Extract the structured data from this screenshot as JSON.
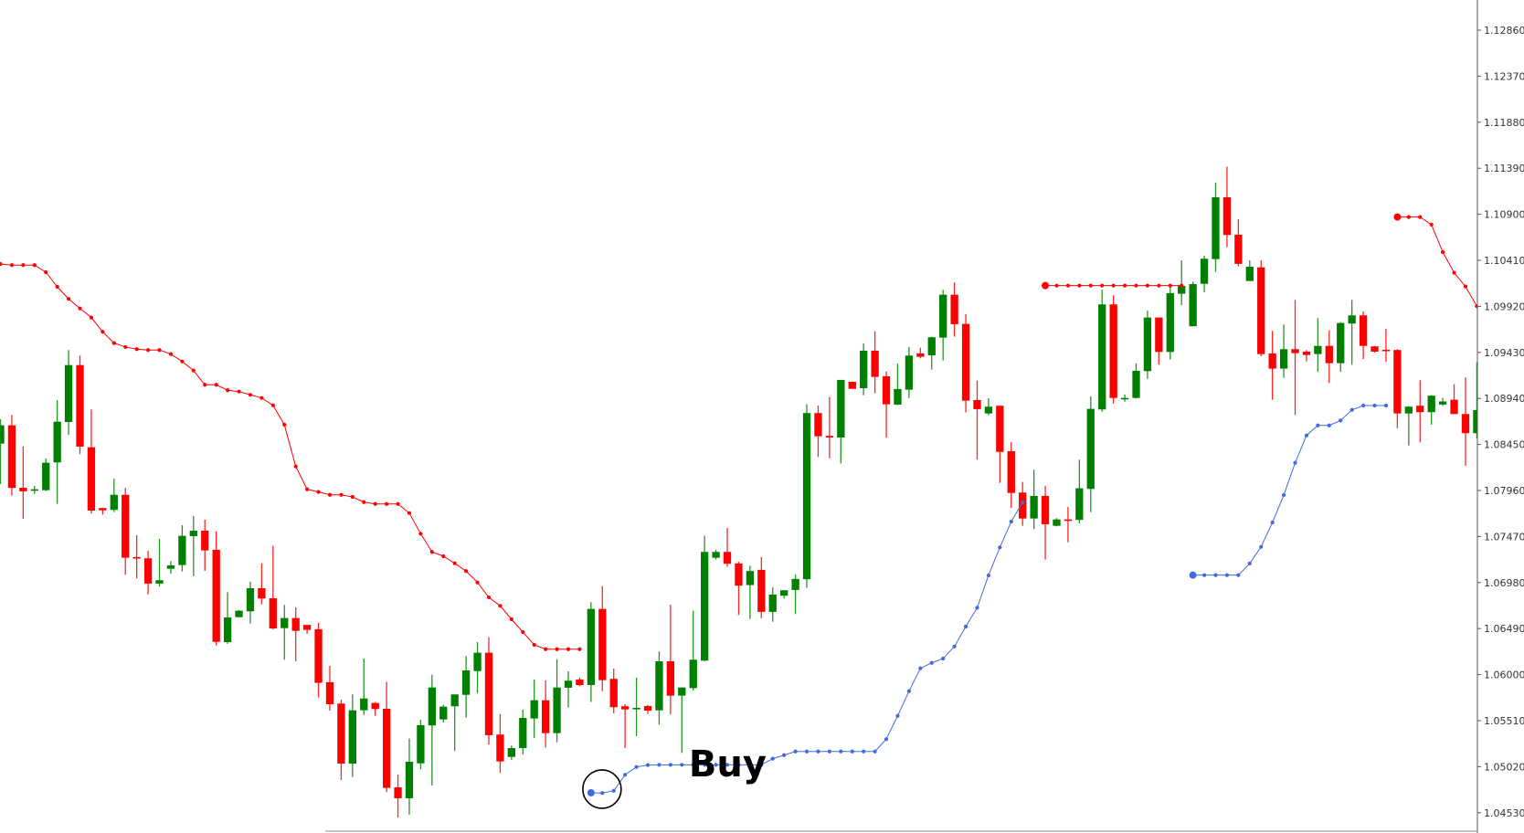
{
  "chart_data": {
    "type": "candlestick",
    "title": "",
    "xlabel": "",
    "ylabel": "",
    "ylim": [
      1.04314,
      1.13181
    ],
    "grid": false,
    "candle_format": [
      "open",
      "high",
      "low",
      "close"
    ],
    "colors": {
      "bull": "#008000",
      "bear": "#ff0000",
      "sell_stop": "#ff0000",
      "buy_stop": "#4169e1",
      "axis": "#555555"
    },
    "y_ticks": [
      "1.12860",
      "1.12370",
      "1.11880",
      "1.11390",
      "1.10900",
      "1.10410",
      "1.09920",
      "1.09430",
      "1.08940",
      "1.08450",
      "1.07960",
      "1.07470",
      "1.06980",
      "1.06490",
      "1.06000",
      "1.05510",
      "1.05020",
      "1.04530"
    ],
    "candles": [
      [
        1.08459,
        1.08719,
        1.08028,
        1.08654
      ],
      [
        1.08654,
        1.08764,
        1.07905,
        1.07987
      ],
      [
        1.07989,
        1.08427,
        1.07659,
        1.07951
      ],
      [
        1.0796,
        1.08009,
        1.07924,
        1.07973
      ],
      [
        1.07963,
        1.08301,
        1.07953,
        1.08255
      ],
      [
        1.08259,
        1.0892,
        1.07817,
        1.08692
      ],
      [
        1.08689,
        1.09455,
        1.08553,
        1.09295
      ],
      [
        1.09295,
        1.09396,
        1.08346,
        1.08427
      ],
      [
        1.0842,
        1.08823,
        1.07714,
        1.07746
      ],
      [
        1.07773,
        1.07773,
        1.07704,
        1.07749
      ],
      [
        1.07753,
        1.08087,
        1.0773,
        1.07914
      ],
      [
        1.07914,
        1.07987,
        1.07063,
        1.07244
      ],
      [
        1.07251,
        1.07484,
        1.07024,
        1.07238
      ],
      [
        1.07238,
        1.07319,
        1.06855,
        1.06969
      ],
      [
        1.06969,
        1.07445,
        1.06937,
        1.07005
      ],
      [
        1.07127,
        1.07209,
        1.07073,
        1.07163
      ],
      [
        1.07166,
        1.07591,
        1.07098,
        1.07477
      ],
      [
        1.07474,
        1.07688,
        1.0705,
        1.07532
      ],
      [
        1.07532,
        1.07649,
        1.07105,
        1.07322
      ],
      [
        1.07329,
        1.07526,
        1.0631,
        1.06349
      ],
      [
        1.06346,
        1.06878,
        1.06327,
        1.06609
      ],
      [
        1.06612,
        1.06687,
        1.06609,
        1.0668
      ],
      [
        1.06674,
        1.06991,
        1.06544,
        1.0692
      ],
      [
        1.0692,
        1.07185,
        1.06748,
        1.0681
      ],
      [
        1.06813,
        1.0737,
        1.0648,
        1.06492
      ],
      [
        1.06495,
        1.06742,
        1.06159,
        1.06602
      ],
      [
        1.06602,
        1.06716,
        1.06142,
        1.06466
      ],
      [
        1.06529,
        1.06529,
        1.06434,
        1.06476
      ],
      [
        1.06483,
        1.06551,
        1.05756,
        1.05912
      ],
      [
        1.05919,
        1.06094,
        1.05617,
        1.05685
      ],
      [
        1.05692,
        1.05734,
        1.04878,
        1.05053
      ],
      [
        1.05053,
        1.05789,
        1.0491,
        1.0562
      ],
      [
        1.0562,
        1.06171,
        1.05571,
        1.05746
      ],
      [
        1.05698,
        1.05708,
        1.05562,
        1.05634
      ],
      [
        1.05636,
        1.05922,
        1.04749,
        1.04794
      ],
      [
        1.048,
        1.04937,
        1.04479,
        1.04684
      ],
      [
        1.04684,
        1.05319,
        1.04511,
        1.05073
      ],
      [
        1.05056,
        1.0552,
        1.04992,
        1.05462
      ],
      [
        1.05459,
        1.05999,
        1.0482,
        1.05863
      ],
      [
        1.05523,
        1.05679,
        1.05491,
        1.05659
      ],
      [
        1.05663,
        1.05789,
        1.05187,
        1.05789
      ],
      [
        1.05785,
        1.06197,
        1.05543,
        1.06045
      ],
      [
        1.06038,
        1.06346,
        1.05801,
        1.06233
      ],
      [
        1.06233,
        1.06397,
        1.05255,
        1.05355
      ],
      [
        1.05362,
        1.05581,
        1.04953,
        1.05076
      ],
      [
        1.05124,
        1.05244,
        1.0509,
        1.05218
      ],
      [
        1.05218,
        1.05627,
        1.0515,
        1.05539
      ],
      [
        1.05533,
        1.05948,
        1.05326,
        1.05727
      ],
      [
        1.05727,
        1.05938,
        1.05225,
        1.05377
      ],
      [
        1.05377,
        1.06164,
        1.0528,
        1.05863
      ],
      [
        1.0586,
        1.06035,
        1.05649,
        1.05935
      ],
      [
        1.05948,
        1.05967,
        1.05877,
        1.05889
      ],
      [
        1.05889,
        1.06771,
        1.05708,
        1.06699
      ],
      [
        1.06699,
        1.06943,
        1.05824,
        1.05941
      ],
      [
        1.05955,
        1.06064,
        1.05588,
        1.05653
      ],
      [
        1.05663,
        1.05685,
        1.05218,
        1.0563
      ],
      [
        1.05634,
        1.05967,
        1.05345,
        1.05646
      ],
      [
        1.05666,
        1.05675,
        1.05581,
        1.05617
      ],
      [
        1.0562,
        1.06246,
        1.05468,
        1.06142
      ],
      [
        1.06142,
        1.06745,
        1.05575,
        1.05776
      ],
      [
        1.05776,
        1.05863,
        1.05167,
        1.05863
      ],
      [
        1.05857,
        1.0668,
        1.05831,
        1.06159
      ],
      [
        1.06149,
        1.07477,
        1.06142,
        1.07306
      ],
      [
        1.07244,
        1.07329,
        1.07225,
        1.07306
      ],
      [
        1.07306,
        1.07562,
        1.07147,
        1.0718
      ],
      [
        1.07183,
        1.07202,
        1.06635,
        1.06947
      ],
      [
        1.06953,
        1.0716,
        1.06592,
        1.07102
      ],
      [
        1.07115,
        1.07251,
        1.06599,
        1.06668
      ],
      [
        1.06668,
        1.0693,
        1.06563,
        1.06852
      ],
      [
        1.0684,
        1.06898,
        1.0681,
        1.06898
      ],
      [
        1.06901,
        1.07066,
        1.06645,
        1.07018
      ],
      [
        1.07015,
        1.08877,
        1.06923,
        1.08784
      ],
      [
        1.08784,
        1.08864,
        1.08317,
        1.08537
      ],
      [
        1.08541,
        1.08955,
        1.08304,
        1.08524
      ],
      [
        1.08524,
        1.09137,
        1.08249,
        1.09137
      ],
      [
        1.09117,
        1.09117,
        1.09042,
        1.09042
      ],
      [
        1.09049,
        1.09526,
        1.08974,
        1.09448
      ],
      [
        1.09448,
        1.09655,
        1.08994,
        1.09169
      ],
      [
        1.09176,
        1.09227,
        1.08521,
        1.08877
      ],
      [
        1.08874,
        1.09312,
        1.08868,
        1.0904
      ],
      [
        1.09033,
        1.09487,
        1.08945,
        1.09396
      ],
      [
        1.09419,
        1.0948,
        1.09367,
        1.09383
      ],
      [
        1.09399,
        1.09597,
        1.09247,
        1.09591
      ],
      [
        1.09587,
        1.10096,
        1.09344,
        1.10044
      ],
      [
        1.10044,
        1.10174,
        1.09597,
        1.0973
      ],
      [
        1.09733,
        1.09837,
        1.0879,
        1.08916
      ],
      [
        1.08923,
        1.0913,
        1.08288,
        1.08826
      ],
      [
        1.0878,
        1.08942,
        1.08761,
        1.08852
      ],
      [
        1.08862,
        1.08862,
        1.08041,
        1.08371
      ],
      [
        1.08378,
        1.08476,
        1.07773,
        1.07934
      ],
      [
        1.07938,
        1.08051,
        1.07584,
        1.07662
      ],
      [
        1.07662,
        1.08181,
        1.07549,
        1.07902
      ],
      [
        1.07902,
        1.08009,
        1.07225,
        1.07601
      ],
      [
        1.07584,
        1.07666,
        1.07578,
        1.07652
      ],
      [
        1.07652,
        1.07786,
        1.07409,
        1.07647
      ],
      [
        1.07647,
        1.08288,
        1.0761,
        1.07983
      ],
      [
        1.07977,
        1.08962,
        1.0773,
        1.08829
      ],
      [
        1.08823,
        1.10096,
        1.08797,
        1.09941
      ],
      [
        1.09941,
        1.10038,
        1.08884,
        1.08945
      ],
      [
        1.08936,
        1.08981,
        1.08906,
        1.08945
      ],
      [
        1.08945,
        1.09315,
        1.08939,
        1.09234
      ],
      [
        1.09231,
        1.09876,
        1.09149,
        1.09801
      ],
      [
        1.09801,
        1.09801,
        1.09299,
        1.09435
      ],
      [
        1.09435,
        1.10145,
        1.09354,
        1.1006
      ],
      [
        1.10054,
        1.1041,
        1.09934,
        1.10138
      ],
      [
        1.09708,
        1.10183,
        1.09708,
        1.10157
      ],
      [
        1.1016,
        1.1046,
        1.1007,
        1.10427
      ],
      [
        1.10423,
        1.11237,
        1.10287,
        1.11081
      ],
      [
        1.11081,
        1.11405,
        1.1055,
        1.1068
      ],
      [
        1.10683,
        1.10848,
        1.10345,
        1.10372
      ],
      [
        1.1019,
        1.1041,
        1.1019,
        1.10342
      ],
      [
        1.10335,
        1.1041,
        1.09389,
        1.09412
      ],
      [
        1.09419,
        1.09659,
        1.08926,
        1.09257
      ],
      [
        1.09257,
        1.09727,
        1.09159,
        1.09464
      ],
      [
        1.09464,
        1.09989,
        1.08764,
        1.09422
      ],
      [
        1.09438,
        1.09455,
        1.09334,
        1.09402
      ],
      [
        1.09412,
        1.09795,
        1.09224,
        1.09499
      ],
      [
        1.09499,
        1.09665,
        1.09104,
        1.09315
      ],
      [
        1.09315,
        1.09752,
        1.09224,
        1.09743
      ],
      [
        1.09737,
        1.09989,
        1.09299,
        1.09824
      ],
      [
        1.09824,
        1.09866,
        1.09358,
        1.09499
      ],
      [
        1.09494,
        1.09499,
        1.09428,
        1.09438
      ],
      [
        1.09458,
        1.09681,
        1.09328,
        1.09451
      ],
      [
        1.09455,
        1.09464,
        1.08622,
        1.0878
      ],
      [
        1.0878,
        1.08858,
        1.08439,
        1.08852
      ],
      [
        1.08862,
        1.09134,
        1.08472,
        1.08794
      ],
      [
        1.08794,
        1.08975,
        1.0866,
        1.08969
      ],
      [
        1.08875,
        1.08947,
        1.08862,
        1.08908
      ],
      [
        1.08926,
        1.09091,
        1.08774,
        1.08774
      ],
      [
        1.08774,
        1.09163,
        1.08223,
        1.0857
      ],
      [
        1.0857,
        1.09325,
        1.08514,
        1.08816
      ]
    ],
    "sell_stop": [
      1.10371,
      1.10359,
      1.10359,
      1.10359,
      1.10284,
      1.10128,
      1.09999,
      1.09898,
      1.09801,
      1.09649,
      1.09529,
      1.09487,
      1.09465,
      1.09455,
      1.09455,
      1.09412,
      1.09334,
      1.09237,
      1.09085,
      1.09085,
      1.09027,
      1.09013,
      1.08978,
      1.08945,
      1.08867,
      1.0866,
      1.08216,
      1.07973,
      1.07944,
      1.07914,
      1.07914,
      1.07892,
      1.07836,
      1.07817,
      1.07817,
      1.07817,
      1.0772,
      1.075,
      1.07306,
      1.0726,
      1.07185,
      1.07102,
      1.06981,
      1.06823,
      1.06732,
      1.06589,
      1.06453,
      1.06317,
      1.06271,
      1.06271,
      1.06271,
      1.06271,
      null,
      null,
      null,
      null,
      null,
      null,
      null,
      null,
      null,
      null,
      null,
      null,
      null,
      null,
      null,
      null,
      null,
      null,
      null,
      null,
      null,
      null,
      null,
      null,
      null,
      null,
      null,
      null,
      null,
      null,
      null,
      null,
      null,
      null,
      null,
      null,
      null,
      null,
      null,
      null,
      1.10141,
      1.10141,
      1.10141,
      1.10141,
      1.10141,
      1.10141,
      1.10141,
      1.10141,
      1.10141,
      1.10141,
      1.10141,
      1.10141,
      1.10141,
      null,
      null,
      null,
      null,
      null,
      null,
      null,
      null,
      null,
      null,
      null,
      null,
      null,
      null,
      null,
      null,
      null,
      null,
      1.10871,
      1.10871,
      1.10871,
      1.1079,
      1.10498,
      1.10278,
      1.10132,
      1.09922
    ],
    "buy_stop": [
      null,
      null,
      null,
      null,
      null,
      null,
      null,
      null,
      null,
      null,
      null,
      null,
      null,
      null,
      null,
      null,
      null,
      null,
      null,
      null,
      null,
      null,
      null,
      null,
      null,
      null,
      null,
      null,
      null,
      null,
      null,
      null,
      null,
      null,
      null,
      null,
      null,
      null,
      null,
      null,
      null,
      null,
      null,
      null,
      null,
      null,
      null,
      null,
      null,
      null,
      null,
      null,
      1.04742,
      1.04739,
      1.04764,
      1.04934,
      1.05017,
      1.05037,
      1.0504,
      1.0504,
      1.0504,
      1.0504,
      1.0504,
      1.0504,
      1.0504,
      1.0504,
      1.0504,
      1.0504,
      1.05105,
      1.05143,
      1.05182,
      1.05182,
      1.05182,
      1.05182,
      1.05182,
      1.05182,
      1.05182,
      1.05182,
      1.05313,
      1.05561,
      1.05824,
      1.06067,
      1.06125,
      1.06171,
      1.063,
      1.06511,
      1.06712,
      1.07056,
      1.07354,
      1.07629,
      1.07833,
      null,
      null,
      null,
      null,
      null,
      null,
      null,
      null,
      null,
      null,
      null,
      null,
      null,
      null,
      1.07059,
      1.07059,
      1.07059,
      1.07059,
      1.07059,
      1.07183,
      1.0736,
      1.07619,
      1.07911,
      1.08254,
      1.08546,
      1.08653,
      1.08653,
      1.08705,
      1.08818,
      1.08864,
      1.08864,
      1.08864,
      null,
      null,
      null,
      null,
      null,
      null,
      null,
      null
    ],
    "annotations": [
      {
        "text": "Buy",
        "bar_index": 52,
        "price": 1.04742,
        "marker": "circle"
      }
    ]
  }
}
